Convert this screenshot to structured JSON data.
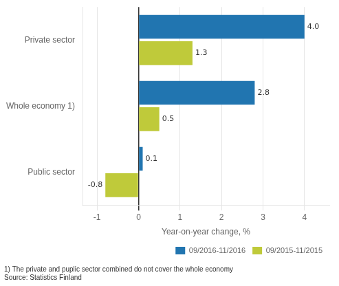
{
  "chart_data": {
    "type": "bar",
    "orientation": "horizontal",
    "categories": [
      "Private sector",
      "Whole economy 1)",
      "Public sector"
    ],
    "series": [
      {
        "name": "09/2016-11/2016",
        "color": "#2175B0",
        "values": [
          4.0,
          2.8,
          0.1
        ],
        "value_labels": [
          "4.0",
          "2.8",
          "0.1"
        ]
      },
      {
        "name": "09/2015-11/2015",
        "color": "#BFCA3A",
        "values": [
          1.3,
          0.5,
          -0.8
        ],
        "value_labels": [
          "1.3",
          "0.5",
          "-0.8"
        ]
      }
    ],
    "xlabel": "Year-on-year change, %",
    "xlim": [
      -1.35,
      4.6
    ],
    "xticks": [
      -1,
      0,
      1,
      2,
      3,
      4
    ],
    "grid": true,
    "legend": "lower right",
    "data_labels": true,
    "annotations": [
      "1) The private and puplic sector combined do not cover the whole economy",
      "Source: Statistics Finland"
    ]
  }
}
